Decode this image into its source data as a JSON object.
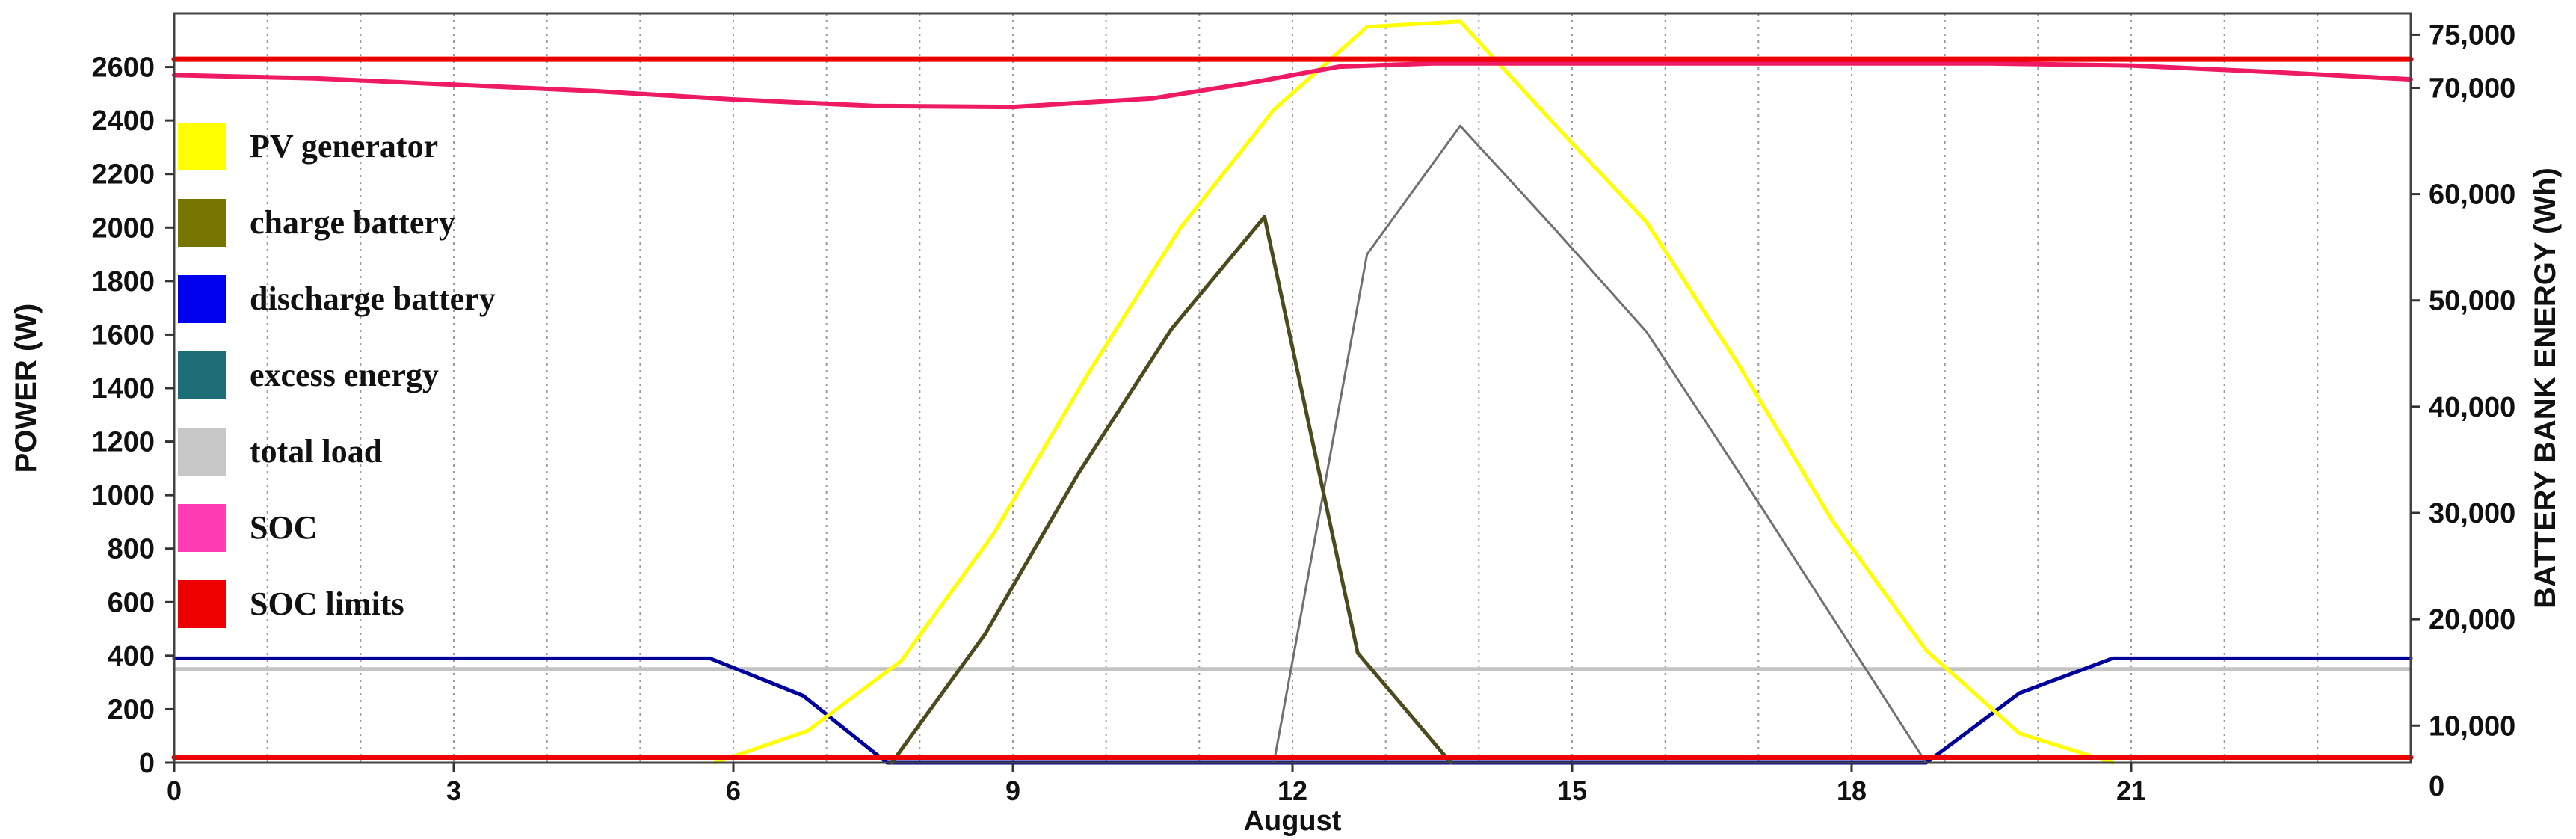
{
  "chart_data": {
    "type": "line",
    "xlabel": "August",
    "ylabel_left": "POWER (W)",
    "ylabel_right": "BATTERY BANK ENERGY (Wh)",
    "xlim": [
      0,
      24
    ],
    "ylim_left": [
      0,
      2800
    ],
    "ylim_right": [
      6500,
      77000
    ],
    "x_ticks": [
      0,
      3,
      6,
      9,
      12,
      15,
      18,
      21
    ],
    "x_tick_labels": [
      "0",
      "3",
      "6",
      "9",
      "12",
      "15",
      "18",
      "21"
    ],
    "y_left_ticks": [
      0,
      200,
      400,
      600,
      800,
      1000,
      1200,
      1400,
      1600,
      1800,
      2000,
      2200,
      2400,
      2600
    ],
    "y_left_tick_labels": [
      "0",
      "200",
      "400",
      "600",
      "800",
      "1000",
      "1200",
      "1400",
      "1600",
      "1800",
      "2000",
      "2200",
      "2400",
      "2600"
    ],
    "y_right_ticks": [
      10000,
      20000,
      30000,
      40000,
      50000,
      60000,
      70000,
      75000
    ],
    "y_right_tick_labels": [
      "10,000",
      "20,000",
      "30,000",
      "40,000",
      "50,000",
      "60,000",
      "70,000",
      "75,000"
    ],
    "y_right_extra_label": "0",
    "grid": {
      "vertical": true,
      "horizontal": false
    },
    "legend_position": "left",
    "series": [
      {
        "name": "PV generator",
        "color": "#ffff00",
        "axis": "left",
        "width": 5,
        "x": [
          5.8,
          6.8,
          7.8,
          8.8,
          9.8,
          10.8,
          11.8,
          12.8,
          13.8,
          14.8,
          15.8,
          16.8,
          17.8,
          18.8,
          19.8,
          20.8
        ],
        "y": [
          0,
          120,
          380,
          860,
          1450,
          2000,
          2440,
          2750,
          2770,
          2390,
          2020,
          1480,
          900,
          420,
          110,
          0
        ]
      },
      {
        "name": "charge battery",
        "color": "#4b4b1e",
        "axis": "left",
        "width": 5,
        "x": [
          7.7,
          8.7,
          9.7,
          10.7,
          11.7,
          12.7,
          13.7
        ],
        "y": [
          0,
          480,
          1080,
          1620,
          2040,
          410,
          0
        ]
      },
      {
        "name": "discharge battery",
        "color": "#00009c",
        "axis": "left",
        "width": 5,
        "x": [
          0,
          5.75,
          6.75,
          7.65,
          18.8,
          19.8,
          20.8,
          24
        ],
        "y": [
          390,
          390,
          250,
          0,
          0,
          260,
          390,
          390
        ]
      },
      {
        "name": "excess energy",
        "color": "#1e6e78",
        "axis": "left",
        "width": 5,
        "x": [],
        "y": []
      },
      {
        "name": "total load",
        "color": "#c4c4c4",
        "axis": "left",
        "width": 5,
        "x": [
          0,
          24
        ],
        "y": [
          350,
          350
        ]
      },
      {
        "name": "total load (secondary)",
        "color": "#707070",
        "axis": "left",
        "width": 3,
        "x": [
          11.8,
          12.8,
          13.8,
          14.8,
          15.8,
          16.8,
          17.8,
          18.8
        ],
        "y": [
          0,
          1900,
          2380,
          2000,
          1610,
          1080,
          540,
          0
        ]
      },
      {
        "name": "SOC",
        "color": "#ee1a64",
        "axis": "right",
        "width": 6,
        "x": [
          0,
          1.5,
          3,
          4.5,
          6,
          7.5,
          9,
          10.5,
          11.5,
          12.5,
          13.5,
          15,
          16.5,
          18,
          19.5,
          21,
          22.5,
          24
        ],
        "y": [
          71200,
          70900,
          70300,
          69700,
          68900,
          68300,
          68200,
          69000,
          70400,
          72000,
          72300,
          72300,
          72300,
          72300,
          72300,
          72100,
          71500,
          70800
        ]
      },
      {
        "name": "SOC limits",
        "color": "#ee0000",
        "axis": "right",
        "width": 7,
        "x": [
          0,
          24
        ],
        "y": [
          72700,
          72700
        ]
      },
      {
        "name": "SOC limits (lower)",
        "color": "#ee0000",
        "axis": "right",
        "width": 7,
        "x": [
          0,
          24
        ],
        "y": [
          7000,
          7000
        ]
      }
    ],
    "legend": [
      {
        "label": "PV generator",
        "color": "#ffff00"
      },
      {
        "label": "charge battery",
        "color": "#757500"
      },
      {
        "label": "discharge battery",
        "color": "#0000ee"
      },
      {
        "label": "excess energy",
        "color": "#1e6e78"
      },
      {
        "label": "total load",
        "color": "#c8c8c8"
      },
      {
        "label": "SOC",
        "color": "#ff3cb4"
      },
      {
        "label": "SOC limits",
        "color": "#ee0000"
      }
    ]
  }
}
